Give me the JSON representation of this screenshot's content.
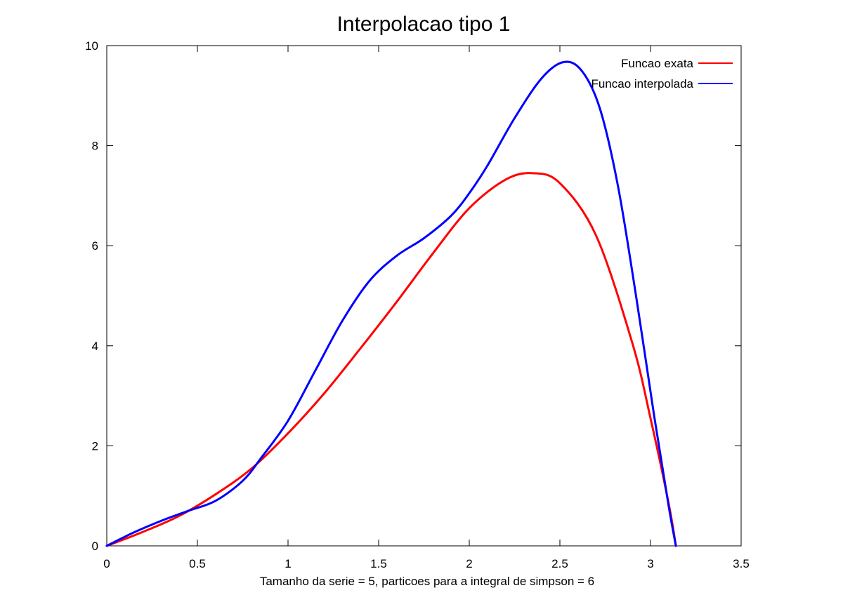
{
  "chart_data": {
    "type": "line",
    "title": "Interpolacao tipo 1",
    "xlabel": "Tamanho da serie = 5, particoes para a integral de simpson = 6",
    "ylabel": "",
    "xlim": [
      0,
      3.5
    ],
    "ylim": [
      0,
      10
    ],
    "xticks": [
      0,
      0.5,
      1,
      1.5,
      2,
      2.5,
      3,
      3.5
    ],
    "xtick_labels": [
      "0",
      "0.5",
      "1",
      "1.5",
      "2",
      "2.5",
      "3",
      "3.5"
    ],
    "yticks": [
      0,
      2,
      4,
      6,
      8,
      10
    ],
    "ytick_labels": [
      "0",
      "2",
      "4",
      "6",
      "8",
      "10"
    ],
    "grid": false,
    "legend_position": "top-right",
    "series": [
      {
        "name": "Funcao exata",
        "color": "#ff0000",
        "x": [
          0,
          0.2,
          0.4,
          0.6,
          0.8,
          1.0,
          1.2,
          1.4,
          1.6,
          1.8,
          2.0,
          2.2,
          2.35,
          2.5,
          2.7,
          2.9,
          3.0,
          3.1,
          3.14
        ],
        "y": [
          0,
          0.28,
          0.6,
          1.03,
          1.55,
          2.25,
          3.05,
          3.95,
          4.88,
          5.85,
          6.75,
          7.32,
          7.45,
          7.25,
          6.2,
          4.05,
          2.55,
          0.85,
          0
        ]
      },
      {
        "name": "Funcao interpolada",
        "color": "#0000ff",
        "x": [
          0,
          0.15,
          0.3,
          0.45,
          0.6,
          0.75,
          0.85,
          1.0,
          1.15,
          1.3,
          1.45,
          1.6,
          1.75,
          1.9,
          2.0,
          2.1,
          2.25,
          2.4,
          2.52,
          2.62,
          2.72,
          2.82,
          2.92,
          3.02,
          3.1,
          3.14
        ],
        "y": [
          0,
          0.27,
          0.5,
          0.7,
          0.9,
          1.3,
          1.75,
          2.5,
          3.5,
          4.5,
          5.3,
          5.8,
          6.15,
          6.6,
          7.05,
          7.6,
          8.55,
          9.35,
          9.67,
          9.5,
          8.75,
          7.2,
          5.0,
          2.6,
          0.8,
          0
        ]
      }
    ]
  }
}
